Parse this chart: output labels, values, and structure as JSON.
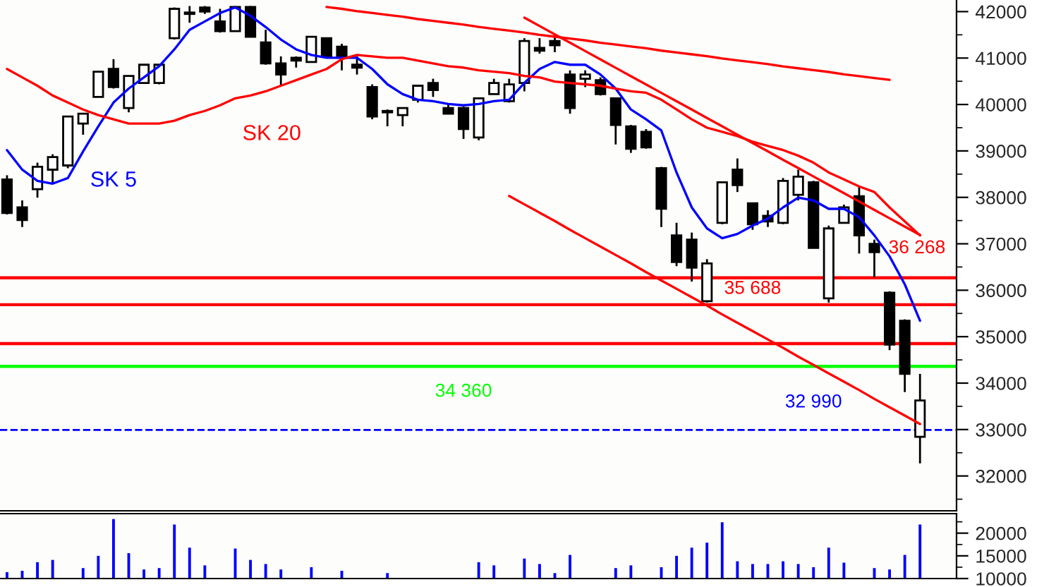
{
  "chart_data": [
    {
      "type": "candlestick",
      "categories": [
        null,
        null,
        null,
        null,
        null,
        null,
        null,
        null,
        null,
        null,
        null,
        null,
        null,
        null,
        null,
        null,
        null,
        null,
        null,
        null,
        null,
        null,
        null,
        null,
        null,
        null,
        null,
        null,
        null,
        null,
        null,
        null,
        null,
        null,
        null,
        null,
        null,
        null,
        null,
        null,
        null,
        null,
        null,
        null,
        null,
        null,
        null,
        null,
        null,
        null,
        null,
        null,
        null,
        null,
        null,
        null,
        null,
        null,
        null,
        null,
        null
      ],
      "ohlc": [
        [
          38386,
          38476,
          37633,
          37663
        ],
        [
          37783,
          37934,
          37361,
          37512
        ],
        [
          38175,
          38747,
          37994,
          38657
        ],
        [
          38596,
          38928,
          38295,
          38867
        ],
        [
          38687,
          39741,
          38627,
          39741
        ],
        [
          39590,
          39801,
          39349,
          39801
        ],
        [
          40163,
          40705,
          40163,
          40705
        ],
        [
          40765,
          40976,
          40343,
          40374
        ],
        [
          39922,
          40615,
          39831,
          40615
        ],
        [
          40464,
          40856,
          40464,
          40856
        ],
        [
          40464,
          40856,
          40434,
          40856
        ],
        [
          41428,
          42090,
          41400,
          42060
        ],
        [
          41950,
          42120,
          41760,
          41980
        ],
        [
          42090,
          42120,
          41950,
          42000
        ],
        [
          41789,
          42060,
          41548,
          41578
        ],
        [
          41578,
          42120,
          41578,
          42100
        ],
        [
          42100,
          42120,
          41458,
          41458
        ],
        [
          41337,
          41608,
          40856,
          40886
        ],
        [
          40886,
          41036,
          40404,
          40645
        ],
        [
          41006,
          41036,
          40795,
          40946
        ],
        [
          40916,
          41458,
          40916,
          41458
        ],
        [
          41428,
          41428,
          41036,
          41036
        ],
        [
          41247,
          41307,
          40735,
          41006
        ],
        [
          40856,
          41036,
          40645,
          40795
        ],
        [
          40374,
          40434,
          39681,
          39741
        ],
        [
          39861,
          39892,
          39530,
          39831
        ],
        [
          39771,
          39922,
          39530,
          39922
        ],
        [
          40103,
          40404,
          40042,
          40404
        ],
        [
          40464,
          40554,
          40163,
          40313
        ],
        [
          39922,
          40012,
          39801,
          39801
        ],
        [
          39922,
          39952,
          39259,
          39470
        ],
        [
          39289,
          40133,
          39229,
          40133
        ],
        [
          40223,
          40554,
          40223,
          40464
        ],
        [
          40072,
          40554,
          40042,
          40434
        ],
        [
          40464,
          41428,
          40283,
          41367
        ],
        [
          41217,
          41428,
          41096,
          41157
        ],
        [
          41367,
          41518,
          41127,
          41277
        ],
        [
          40645,
          40735,
          39801,
          39922
        ],
        [
          40554,
          40735,
          40374,
          40645
        ],
        [
          40524,
          40584,
          40193,
          40223
        ],
        [
          40133,
          40133,
          39139,
          39560
        ],
        [
          39530,
          39560,
          38958,
          39048
        ],
        [
          39410,
          39470,
          39048,
          39078
        ],
        [
          38627,
          38657,
          37361,
          37753
        ],
        [
          37181,
          37452,
          36518,
          36608
        ],
        [
          37090,
          37241,
          36187,
          36488
        ],
        [
          35765,
          36669,
          35735,
          36578
        ],
        [
          37452,
          38326,
          37422,
          38326
        ],
        [
          38596,
          38838,
          38115,
          38265
        ],
        [
          37874,
          37874,
          37301,
          37422
        ],
        [
          37603,
          37723,
          37361,
          37482
        ],
        [
          37452,
          38416,
          37422,
          38356
        ],
        [
          38054,
          38596,
          37934,
          38446
        ],
        [
          38326,
          38356,
          36910,
          36910
        ],
        [
          35825,
          37392,
          35735,
          37331
        ],
        [
          37452,
          37843,
          37452,
          37783
        ],
        [
          38024,
          38235,
          36789,
          37181
        ],
        [
          37000,
          37090,
          36277,
          36819
        ],
        [
          35946,
          35976,
          34710,
          34831
        ],
        [
          35343,
          35373,
          33807,
          34198
        ],
        [
          32844,
          34198,
          32271,
          33627
        ]
      ],
      "series": [
        {
          "name": "SK 5",
          "type": "line",
          "color": "#0000ff",
          "values": [
            39018,
            38597,
            38356,
            38295,
            38416,
            38988,
            39530,
            40042,
            40343,
            40584,
            40825,
            41187,
            41608,
            41789,
            41970,
            42090,
            41910,
            41668,
            41398,
            41187,
            41066,
            41006,
            41006,
            41006,
            40765,
            40434,
            40223,
            40103,
            40072,
            40012,
            39982,
            40012,
            40072,
            40103,
            40464,
            40765,
            40916,
            40856,
            40856,
            40645,
            40343,
            39892,
            39681,
            39440,
            38536,
            37783,
            37331,
            37120,
            37211,
            37392,
            37542,
            37783,
            37994,
            37934,
            37753,
            37753,
            37572,
            37181,
            36729,
            36127,
            35343
          ]
        },
        {
          "name": "SK 20",
          "type": "line",
          "color": "#ff0000",
          "values": [
            40765,
            40584,
            40404,
            40193,
            40042,
            39892,
            39771,
            39681,
            39590,
            39590,
            39590,
            39650,
            39771,
            39861,
            39982,
            40133,
            40193,
            40283,
            40404,
            40524,
            40645,
            40765,
            40976,
            41066,
            41036,
            41006,
            41006,
            40946,
            40886,
            40825,
            40795,
            40735,
            40705,
            40675,
            40615,
            40584,
            40494,
            40464,
            40434,
            40404,
            40343,
            40283,
            40253,
            40103,
            39892,
            39681,
            39500,
            39410,
            39319,
            39199,
            39108,
            39018,
            38898,
            38747,
            38536,
            38386,
            38235,
            38115,
            37783,
            37482,
            37181
          ]
        },
        {
          "type": "line",
          "color": "#ff0000",
          "values": [
            null,
            null,
            null,
            null,
            null,
            null,
            null,
            null,
            null,
            null,
            null,
            null,
            null,
            null,
            null,
            null,
            null,
            null,
            null,
            null,
            null,
            42100,
            42060,
            42010,
            41970,
            41930,
            41890,
            41840,
            41800,
            41760,
            41720,
            41670,
            41630,
            41590,
            41550,
            41500,
            41460,
            41420,
            41380,
            41330,
            41290,
            41250,
            41210,
            41160,
            41120,
            41080,
            41040,
            40990,
            40950,
            40910,
            40870,
            40820,
            40780,
            40740,
            40700,
            40650,
            40610,
            40570,
            40530,
            null,
            null
          ]
        },
        {
          "type": "line",
          "color": "#ff0000",
          "values": [
            null,
            null,
            null,
            null,
            null,
            null,
            null,
            null,
            null,
            null,
            null,
            null,
            null,
            null,
            null,
            null,
            null,
            null,
            null,
            null,
            null,
            null,
            null,
            null,
            null,
            null,
            null,
            null,
            null,
            null,
            null,
            null,
            null,
            null,
            41870,
            41690,
            41510,
            41330,
            41150,
            40970,
            40790,
            40610,
            40430,
            40250,
            40070,
            39890,
            39710,
            39530,
            39350,
            39170,
            38990,
            38810,
            38630,
            38450,
            38270,
            38090,
            37910,
            37730,
            37550,
            37370,
            37190
          ]
        },
        {
          "type": "line",
          "color": "#ff0000",
          "values": [
            null,
            null,
            null,
            null,
            null,
            null,
            null,
            null,
            null,
            null,
            null,
            null,
            null,
            null,
            null,
            null,
            null,
            null,
            null,
            null,
            null,
            null,
            null,
            null,
            null,
            null,
            null,
            null,
            null,
            null,
            null,
            null,
            null,
            38030,
            37850,
            37670,
            37490,
            37300,
            37120,
            36940,
            36760,
            36580,
            36390,
            36210,
            36030,
            35850,
            35670,
            35480,
            35300,
            35120,
            34940,
            34760,
            34570,
            34390,
            34210,
            34030,
            33850,
            33660,
            33480,
            33300,
            33120
          ]
        }
      ],
      "ylim": [
        31250,
        42250
      ],
      "yticks": [
        32000,
        33000,
        34000,
        35000,
        36000,
        37000,
        38000,
        39000,
        40000,
        41000,
        42000
      ],
      "ref_lines": [
        {
          "axis": "y",
          "value": 34360,
          "label": "34 360",
          "color": "#00ff00"
        },
        {
          "axis": "y",
          "value": 35688,
          "label": "35 688",
          "color": "#ff0000"
        },
        {
          "axis": "y",
          "value": 36268,
          "label": "36 268",
          "color": "#ff0000"
        },
        {
          "axis": "y",
          "value": 34850,
          "color": "#ff0000"
        },
        {
          "axis": "y",
          "value": 32990,
          "label": "32 990",
          "color": "#0000ff",
          "line_style": "dashed"
        }
      ],
      "tick_labels": "y"
    },
    {
      "type": "bar",
      "categories": [
        null,
        null,
        null,
        null,
        null,
        null,
        null,
        null,
        null,
        null,
        null,
        null,
        null,
        null,
        null,
        null,
        null,
        null,
        null,
        null,
        null,
        null,
        null,
        null,
        null,
        null,
        null,
        null,
        null,
        null,
        null,
        null,
        null,
        null,
        null,
        null,
        null,
        null,
        null,
        null,
        null,
        null,
        null,
        null,
        null,
        null,
        null,
        null,
        null,
        null,
        null,
        null,
        null,
        null,
        null,
        null,
        null,
        null,
        null,
        null,
        null
      ],
      "values": [
        11400,
        11700,
        13600,
        14100,
        null,
        12300,
        15000,
        23100,
        15600,
        12000,
        12300,
        21900,
        16800,
        12900,
        null,
        16600,
        14100,
        13200,
        12000,
        null,
        12500,
        null,
        11700,
        null,
        null,
        11200,
        null,
        null,
        null,
        null,
        null,
        13600,
        12900,
        null,
        14400,
        13200,
        11200,
        15200,
        null,
        null,
        12300,
        12900,
        null,
        12500,
        15000,
        16800,
        17900,
        22400,
        13800,
        13200,
        13200,
        13800,
        13200,
        12500,
        16800,
        13500,
        null,
        12300,
        12000,
        15200,
        21900
      ],
      "color": "#0000ff",
      "ylim": [
        10000,
        24300
      ],
      "yticks": [
        10000,
        15000,
        20000
      ],
      "tick_labels": "y"
    }
  ]
}
